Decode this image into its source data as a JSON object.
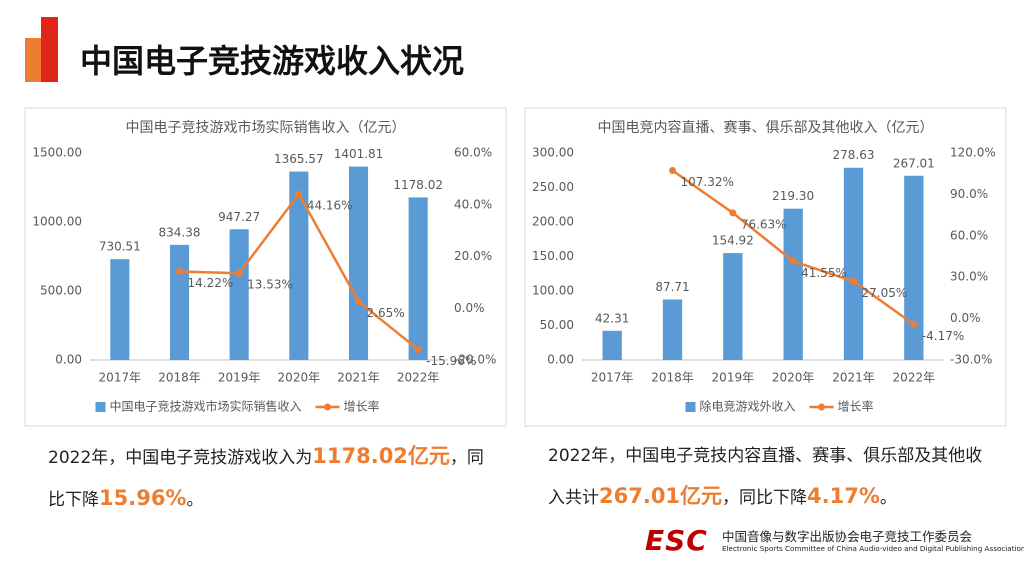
{
  "title": "中国电子竞技游戏收入状况",
  "captions": [
    [
      {
        "text": "2022年，中国电子竞技游戏收入为",
        "emphasis": false
      },
      {
        "text": "1178.02亿元",
        "emphasis": true
      },
      {
        "text": "，同比下降",
        "emphasis": false
      },
      {
        "text": "15.96%",
        "emphasis": true
      },
      {
        "text": "。",
        "emphasis": false
      }
    ],
    [
      {
        "text": "2022年，中国电子竞技内容直播、赛事、俱乐部及其他收入共计",
        "emphasis": false
      },
      {
        "text": "267.01亿元",
        "emphasis": true
      },
      {
        "text": "，同比下降",
        "emphasis": false
      },
      {
        "text": "4.17%",
        "emphasis": true
      },
      {
        "text": "。",
        "emphasis": false
      }
    ]
  ],
  "footer": {
    "logo": "ESC",
    "org_cn": "中国音像与数字出版协会电子竞技工作委员会",
    "org_en": "Electronic Sports Committee of China Audio-video and Digital Publishing Association"
  },
  "chart_data": [
    {
      "type": "bar-line",
      "title": "中国电子竞技游戏市场实际销售收入（亿元）",
      "categories": [
        "2017年",
        "2018年",
        "2019年",
        "2020年",
        "2021年",
        "2022年"
      ],
      "series": [
        {
          "name": "中国电子竞技游戏市场实际销售收入",
          "color": "#5b9bd5",
          "values": [
            730.51,
            834.38,
            947.27,
            1365.57,
            1401.81,
            1178.02
          ]
        },
        {
          "name": "增长率",
          "color": "#ed7d31",
          "axis": "y2",
          "values": [
            null,
            14.22,
            13.53,
            44.16,
            2.65,
            -15.96
          ],
          "value_labels": [
            null,
            "14.22%",
            "13.53%",
            "44.16%",
            "2.65%",
            "-15.96%"
          ]
        }
      ],
      "ylim": [
        0,
        1500
      ],
      "yticks": [
        {
          "value": 0,
          "label": "0.00"
        },
        {
          "value": 500,
          "label": "500.00"
        },
        {
          "value": 1000,
          "label": "1000.00"
        },
        {
          "value": 1500,
          "label": "1500.00"
        }
      ],
      "y2lim": [
        -20,
        60
      ],
      "y2ticks": [
        {
          "value": -20,
          "label": "-20.0%"
        },
        {
          "value": 0,
          "label": "0.0%"
        },
        {
          "value": 20,
          "label": "20.0%"
        },
        {
          "value": 40,
          "label": "40.0%"
        },
        {
          "value": 60,
          "label": "60.0%"
        }
      ],
      "grid": false,
      "legend": "bottom"
    },
    {
      "type": "bar-line",
      "title": "中国电竞内容直播、赛事、俱乐部及其他收入（亿元）",
      "categories": [
        "2017年",
        "2018年",
        "2019年",
        "2020年",
        "2021年",
        "2022年"
      ],
      "series": [
        {
          "name": "除电竞游戏外收入",
          "color": "#5b9bd5",
          "values": [
            42.31,
            87.71,
            154.92,
            219.3,
            278.63,
            267.01
          ],
          "value_labels": [
            "42.31",
            "87.71",
            "154.92",
            "219.30",
            "278.63",
            "267.01"
          ]
        },
        {
          "name": "增长率",
          "color": "#ed7d31",
          "axis": "y2",
          "values": [
            null,
            107.32,
            76.63,
            41.55,
            27.05,
            -4.17
          ],
          "value_labels": [
            null,
            "107.32%",
            "76.63%",
            "41.55%",
            "27.05%",
            "-4.17%"
          ]
        }
      ],
      "ylim": [
        0,
        300
      ],
      "yticks": [
        {
          "value": 0,
          "label": "0.00"
        },
        {
          "value": 50,
          "label": "50.00"
        },
        {
          "value": 100,
          "label": "100.00"
        },
        {
          "value": 150,
          "label": "150.00"
        },
        {
          "value": 200,
          "label": "200.00"
        },
        {
          "value": 250,
          "label": "250.00"
        },
        {
          "value": 300,
          "label": "300.00"
        }
      ],
      "y2lim": [
        -30,
        120
      ],
      "y2ticks": [
        {
          "value": -30,
          "label": "-30.0%"
        },
        {
          "value": 0,
          "label": "0.0%"
        },
        {
          "value": 30,
          "label": "30.0%"
        },
        {
          "value": 60,
          "label": "60.0%"
        },
        {
          "value": 90,
          "label": "90.0%"
        },
        {
          "value": 120,
          "label": "120.0%"
        }
      ],
      "grid": false,
      "legend": "bottom"
    }
  ]
}
